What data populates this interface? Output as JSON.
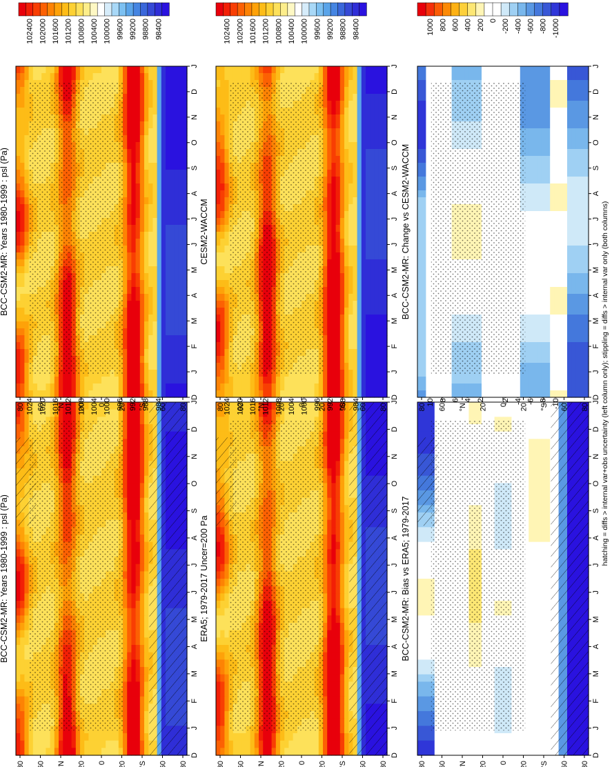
{
  "figure": {
    "footnote": "hatching = diffs > internal var+obs uncertainty (left column only); stippling = diffs > internal var only (both columns)",
    "orientation": "rotated-90-clockwise",
    "colors": {
      "abs_scale": [
        "#e8000b",
        "#f21f06",
        "#f83e03",
        "#fc6103",
        "#fd8304",
        "#fea209",
        "#fdbc17",
        "#fdd133",
        "#fde15a",
        "#fdee8b",
        "#fef8c4",
        "#ffffff",
        "#d6ecfa",
        "#a8d8f7",
        "#7cc0f1",
        "#5aa4e9",
        "#4585e2",
        "#3a67da",
        "#3549d6",
        "#2f2ed7",
        "#2a12df"
      ],
      "diff_scale": [
        "#e8000b",
        "#f5300a",
        "#fb5c05",
        "#fd8a06",
        "#fdb113",
        "#fdd03a",
        "#fde774",
        "#fff5b5",
        "#ffffff",
        "#ffffff",
        "#cfe9f8",
        "#9fd0f3",
        "#79b7ec",
        "#5a98e3",
        "#4478dc",
        "#3857d6",
        "#2f36d8",
        "#2a12df"
      ]
    }
  },
  "chart_data": [
    {
      "id": "p1",
      "type": "heatmap",
      "title": "BCC-CSM2-MR: Years 1980-1999 : psl (Pa)",
      "x_ticks": [
        "D",
        "J",
        "F",
        "M",
        "A",
        "M",
        "J",
        "J",
        "A",
        "S",
        "O",
        "N",
        "D",
        "J"
      ],
      "y_ticks": [
        "80",
        "60",
        "°N",
        "20",
        "0",
        "20",
        "°S",
        "60",
        "80"
      ],
      "colorbar": {
        "labels": [
          "102400",
          "102000",
          "101600",
          "101200",
          "100800",
          "100400",
          "100000",
          "99600",
          "99200",
          "98800",
          "98400"
        ],
        "scale": "abs"
      },
      "hatching": true,
      "stippling": true
    },
    {
      "id": "p2",
      "type": "heatmap",
      "title": "BCC-CSM2-MR: Years 1980-1999 : psl (Pa)",
      "x_ticks": [
        "D",
        "J",
        "F",
        "M",
        "A",
        "M",
        "J",
        "J",
        "A",
        "S",
        "O",
        "N",
        "D",
        "J"
      ],
      "y_ticks": [
        "80",
        "60",
        "°N",
        "20",
        "0",
        "20",
        "°S",
        "60",
        "80"
      ],
      "colorbar": {
        "labels": [
          "102400",
          "102000",
          "101600",
          "101200",
          "100800",
          "100400",
          "100000",
          "99600",
          "99200",
          "98800",
          "98400"
        ],
        "scale": "abs"
      },
      "hatching": false,
      "stippling": true
    },
    {
      "id": "p3",
      "type": "heatmap",
      "title": "ERA5; 1979-2017 Uncer=200 Pa",
      "x_ticks": [
        "D",
        "J",
        "F",
        "M",
        "A",
        "M",
        "J",
        "J",
        "A",
        "S",
        "O",
        "N",
        "D",
        "J"
      ],
      "y_ticks": [
        "80",
        "60",
        "°N",
        "20",
        "0",
        "20",
        "°S",
        "60",
        "80"
      ],
      "colorbar": {
        "labels": [
          "102400",
          "102000",
          "101600",
          "101200",
          "100800",
          "100400",
          "100000",
          "99600",
          "99200",
          "98800",
          "98400"
        ],
        "scale": "abs"
      },
      "hatching": true,
      "stippling": true
    },
    {
      "id": "p4",
      "type": "heatmap",
      "title": "CESM2-WACCM",
      "x_ticks": [
        "D",
        "J",
        "F",
        "M",
        "A",
        "M",
        "J",
        "J",
        "A",
        "S",
        "O",
        "N",
        "D",
        "J"
      ],
      "y_ticks": [
        "80",
        "60",
        "°N",
        "20",
        "0",
        "20",
        "°S",
        "60",
        "80"
      ],
      "colorbar": {
        "labels": [
          "102400",
          "102000",
          "101600",
          "101200",
          "100800",
          "100400",
          "100000",
          "99600",
          "99200",
          "98800",
          "98400"
        ],
        "scale": "abs"
      },
      "hatching": false,
      "stippling": true
    },
    {
      "id": "p5",
      "type": "heatmap",
      "title": "BCC-CSM2-MR: Bias vs ERA5; 1979-2017",
      "x_ticks": [
        "D",
        "J",
        "F",
        "M",
        "A",
        "M",
        "J",
        "J",
        "A",
        "S",
        "O",
        "N",
        "D",
        "J"
      ],
      "y_ticks": [
        "80",
        "60",
        "°N",
        "20",
        "0",
        "20",
        "°S",
        "60",
        "80"
      ],
      "colorbar": {
        "labels": [
          "1000",
          "800",
          "600",
          "400",
          "200",
          "0",
          "-200",
          "-400",
          "-600",
          "-800",
          "-1000"
        ],
        "scale": "diff"
      },
      "hatching": true,
      "stippling": true
    },
    {
      "id": "p6",
      "type": "heatmap",
      "title": "BCC-CSM2-MR: Change vs CESM2-WACCM",
      "x_ticks": [
        "D",
        "J",
        "F",
        "M",
        "A",
        "M",
        "J",
        "J",
        "A",
        "S",
        "O",
        "N",
        "D",
        "J"
      ],
      "y_ticks": [
        "80",
        "60",
        "°N",
        "20",
        "0",
        "20",
        "°S",
        "60",
        "80"
      ],
      "colorbar": {
        "labels": [
          "1000",
          "800",
          "600",
          "400",
          "200",
          "0",
          "-200",
          "-400",
          "-600",
          "-800",
          "-1000"
        ],
        "scale": "diff"
      },
      "hatching": false,
      "stippling": true
    }
  ]
}
